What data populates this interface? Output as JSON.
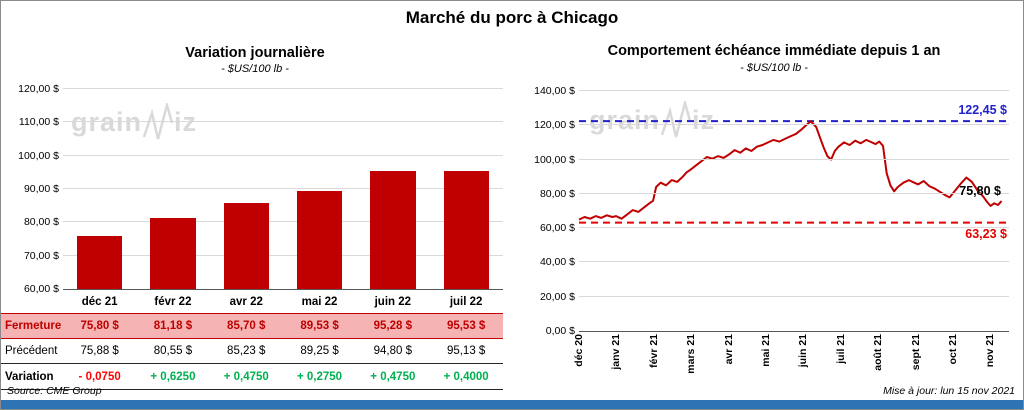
{
  "title": "Marché du porc à Chicago",
  "colors": {
    "bar": "#c00000",
    "line": "#c00000",
    "high_ref": "#2222cc",
    "low_ref": "#e60000",
    "negative": "#ff0000",
    "positive": "#00b050",
    "footer_bar": "#2e74b5"
  },
  "watermark": {
    "part1": "grain",
    "part2": "iz"
  },
  "chart_data": [
    {
      "type": "bar",
      "title": "Variation  journalière",
      "subtitle": "- $US/100 lb -",
      "categories": [
        "déc 21",
        "févr 22",
        "avr 22",
        "mai 22",
        "juin 22",
        "juil 22"
      ],
      "values": [
        75.8,
        81.18,
        85.7,
        89.53,
        95.28,
        95.53
      ],
      "ylim": [
        60,
        120
      ],
      "yticks": [
        {
          "value": 60,
          "label": "60,00 $"
        },
        {
          "value": 70,
          "label": "70,00 $"
        },
        {
          "value": 80,
          "label": "80,00 $"
        },
        {
          "value": 90,
          "label": "90,00 $"
        },
        {
          "value": 100,
          "label": "100,00 $"
        },
        {
          "value": 110,
          "label": "110,00 $"
        },
        {
          "value": 120,
          "label": "120,00 $"
        }
      ],
      "grid": true,
      "legend": false
    },
    {
      "type": "line",
      "title": "Comportement  échéance  immédiate  depuis 1 an",
      "subtitle": "- $US/100 lb -",
      "x_categories": [
        "déc 20",
        "janv 21",
        "févr 21",
        "mars 21",
        "avr 21",
        "mai 21",
        "juin 21",
        "juil 21",
        "août 21",
        "sept 21",
        "oct 21",
        "nov 21"
      ],
      "x_max": 11.6,
      "ylim": [
        0,
        140
      ],
      "yticks": [
        {
          "value": 0,
          "label": "0,00 $"
        },
        {
          "value": 20,
          "label": "20,00 $"
        },
        {
          "value": 40,
          "label": "40,00 $"
        },
        {
          "value": 60,
          "label": "60,00 $"
        },
        {
          "value": 80,
          "label": "80,00 $"
        },
        {
          "value": 100,
          "label": "100,00 $"
        },
        {
          "value": 120,
          "label": "120,00 $"
        },
        {
          "value": 140,
          "label": "140,00 $"
        }
      ],
      "grid": true,
      "legend": false,
      "reference_lines": [
        {
          "value": 122.45,
          "label": "122,45 $",
          "color": "#2222cc",
          "style": "dashed",
          "label_side": "above"
        },
        {
          "value": 63.23,
          "label": "63,23 $",
          "color": "#e60000",
          "style": "dashed",
          "label_side": "below"
        }
      ],
      "last_point_label": {
        "value": 75.8,
        "label": "75,80 $",
        "color": "#000000"
      },
      "points": [
        [
          0,
          65
        ],
        [
          0.15,
          66.5
        ],
        [
          0.3,
          65.5
        ],
        [
          0.45,
          67
        ],
        [
          0.6,
          66
        ],
        [
          0.75,
          67.5
        ],
        [
          0.9,
          66.5
        ],
        [
          1,
          67
        ],
        [
          1.15,
          65.5
        ],
        [
          1.3,
          68
        ],
        [
          1.45,
          70.5
        ],
        [
          1.6,
          69.5
        ],
        [
          1.75,
          72
        ],
        [
          1.9,
          74.5
        ],
        [
          2,
          76
        ],
        [
          2.08,
          84
        ],
        [
          2.2,
          86.5
        ],
        [
          2.35,
          85
        ],
        [
          2.5,
          88
        ],
        [
          2.65,
          87
        ],
        [
          2.8,
          90
        ],
        [
          2.9,
          92.5
        ],
        [
          3,
          94
        ],
        [
          3.15,
          96.5
        ],
        [
          3.3,
          99
        ],
        [
          3.45,
          101.5
        ],
        [
          3.6,
          100.5
        ],
        [
          3.75,
          102
        ],
        [
          3.9,
          101
        ],
        [
          4.05,
          103
        ],
        [
          4.2,
          105.5
        ],
        [
          4.35,
          104
        ],
        [
          4.5,
          106.5
        ],
        [
          4.65,
          105
        ],
        [
          4.8,
          107.5
        ],
        [
          4.95,
          108.5
        ],
        [
          5.1,
          110
        ],
        [
          5.25,
          111.5
        ],
        [
          5.4,
          110.5
        ],
        [
          5.55,
          112
        ],
        [
          5.7,
          113.5
        ],
        [
          5.85,
          115
        ],
        [
          6,
          117.5
        ],
        [
          6.1,
          119.5
        ],
        [
          6.25,
          122.4
        ],
        [
          6.4,
          119
        ],
        [
          6.5,
          113
        ],
        [
          6.6,
          107
        ],
        [
          6.7,
          102
        ],
        [
          6.8,
          100
        ],
        [
          6.9,
          105
        ],
        [
          7,
          107.5
        ],
        [
          7.15,
          110
        ],
        [
          7.3,
          108.5
        ],
        [
          7.45,
          111
        ],
        [
          7.6,
          109.5
        ],
        [
          7.75,
          111.5
        ],
        [
          7.9,
          110
        ],
        [
          8,
          109
        ],
        [
          8.1,
          110.5
        ],
        [
          8.2,
          108
        ],
        [
          8.3,
          92
        ],
        [
          8.4,
          85
        ],
        [
          8.5,
          81.5
        ],
        [
          8.6,
          84
        ],
        [
          8.75,
          86.5
        ],
        [
          8.9,
          88
        ],
        [
          9,
          87
        ],
        [
          9.15,
          85.5
        ],
        [
          9.3,
          87.5
        ],
        [
          9.45,
          84.5
        ],
        [
          9.6,
          83
        ],
        [
          9.75,
          81
        ],
        [
          9.9,
          79
        ],
        [
          10,
          78
        ],
        [
          10.15,
          82
        ],
        [
          10.3,
          86
        ],
        [
          10.45,
          89.5
        ],
        [
          10.6,
          87
        ],
        [
          10.75,
          82
        ],
        [
          10.9,
          78.5
        ],
        [
          11,
          75.5
        ],
        [
          11.1,
          73
        ],
        [
          11.2,
          74.5
        ],
        [
          11.3,
          73.5
        ],
        [
          11.4,
          75.8
        ]
      ]
    }
  ],
  "table": {
    "columns": [
      "déc 21",
      "févr 22",
      "avr 22",
      "mai 22",
      "juin 22",
      "juil 22"
    ],
    "rows": [
      {
        "label": "Fermeture",
        "class": "fermeture",
        "values": [
          "75,80  $",
          "81,18  $",
          "85,70  $",
          "89,53  $",
          "95,28  $",
          "95,53  $"
        ]
      },
      {
        "label": "Précédent",
        "class": "precedent",
        "values": [
          "75,88  $",
          "80,55  $",
          "85,23  $",
          "89,25  $",
          "94,80  $",
          "95,13  $"
        ]
      },
      {
        "label": "Variation",
        "class": "variation",
        "values": [
          "- 0,0750",
          "+ 0,6250",
          "+ 0,4750",
          "+ 0,2750",
          "+ 0,4750",
          "+ 0,4000"
        ]
      }
    ]
  },
  "footer": {
    "source": "Source: CME Group",
    "updated": "Mise à jour: lun 15 nov 2021"
  }
}
